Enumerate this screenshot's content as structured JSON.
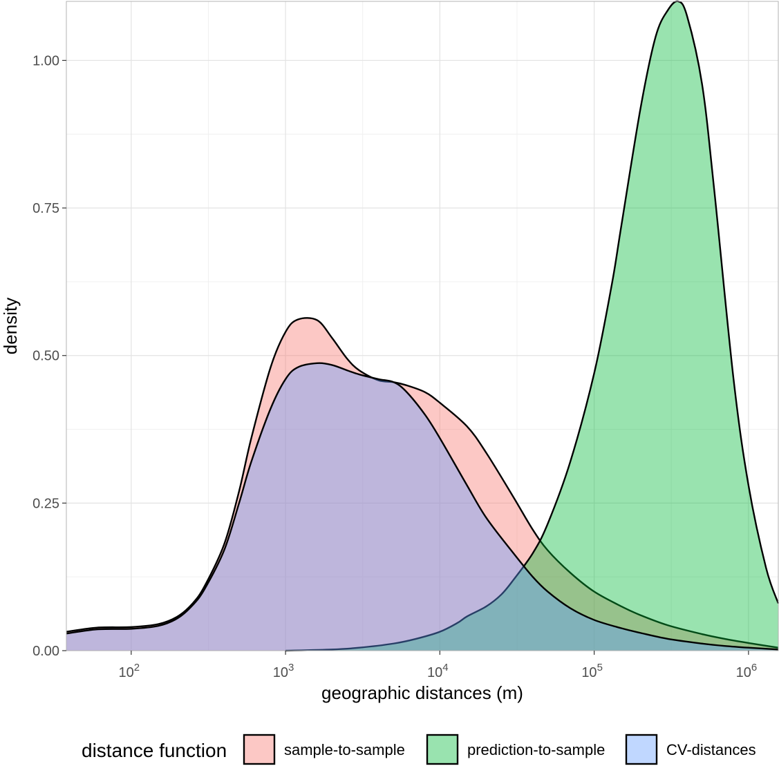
{
  "chart_data": {
    "type": "area",
    "xlabel": "geographic distances (m)",
    "ylabel": "density",
    "x_scale": "log10",
    "xlim": [
      38,
      1560000
    ],
    "ylim": [
      0,
      1.1
    ],
    "x_ticks": [
      {
        "value": 100,
        "base": "10",
        "exp": "2"
      },
      {
        "value": 1000,
        "base": "10",
        "exp": "3"
      },
      {
        "value": 10000,
        "base": "10",
        "exp": "4"
      },
      {
        "value": 100000,
        "base": "10",
        "exp": "5"
      },
      {
        "value": 1000000,
        "base": "10",
        "exp": "6"
      }
    ],
    "y_ticks": [
      {
        "value": 0,
        "label": "0.00"
      },
      {
        "value": 0.25,
        "label": "0.25"
      },
      {
        "value": 0.5,
        "label": "0.50"
      },
      {
        "value": 0.75,
        "label": "0.75"
      },
      {
        "value": 1.0,
        "label": "1.00"
      }
    ],
    "grid": true,
    "legend_position": "bottom",
    "legend_title": "distance function",
    "series": [
      {
        "name": "sample-to-sample",
        "color": "#F8766D",
        "x": [
          38,
          60,
          100,
          150,
          200,
          250,
          300,
          400,
          500,
          600,
          800,
          1000,
          1200,
          1600,
          2000,
          2500,
          3000,
          4000,
          5000,
          6000,
          8000,
          10000,
          15000,
          20000,
          30000,
          40000,
          50000,
          70000,
          100000,
          150000,
          200000,
          300000,
          500000,
          700000,
          1000000,
          1560000
        ],
        "y": [
          0.032,
          0.039,
          0.04,
          0.045,
          0.058,
          0.08,
          0.11,
          0.18,
          0.27,
          0.36,
          0.48,
          0.54,
          0.561,
          0.56,
          0.53,
          0.495,
          0.475,
          0.458,
          0.455,
          0.45,
          0.438,
          0.42,
          0.38,
          0.335,
          0.26,
          0.205,
          0.17,
          0.132,
          0.1,
          0.075,
          0.06,
          0.043,
          0.028,
          0.02,
          0.013,
          0.005
        ]
      },
      {
        "name": "prediction-to-sample",
        "color": "#00BA38",
        "x": [
          1000,
          2000,
          3000,
          5000,
          7000,
          10000,
          13000,
          15000,
          20000,
          25000,
          30000,
          40000,
          50000,
          70000,
          100000,
          130000,
          150000,
          200000,
          250000,
          300000,
          350000,
          400000,
          500000,
          600000,
          800000,
          1000000,
          1300000,
          1560000
        ],
        "y": [
          0.0,
          0.002,
          0.005,
          0.012,
          0.02,
          0.032,
          0.047,
          0.058,
          0.075,
          0.095,
          0.12,
          0.165,
          0.215,
          0.32,
          0.47,
          0.62,
          0.72,
          0.92,
          1.04,
          1.085,
          1.1,
          1.075,
          0.96,
          0.78,
          0.46,
          0.28,
          0.14,
          0.08
        ]
      },
      {
        "name": "CV-distances",
        "color": "#619CFF",
        "x": [
          38,
          60,
          100,
          150,
          200,
          250,
          300,
          400,
          500,
          600,
          800,
          1000,
          1200,
          1600,
          2000,
          2500,
          3000,
          4000,
          5000,
          6000,
          8000,
          10000,
          15000,
          20000,
          30000,
          40000,
          50000,
          70000,
          100000,
          150000,
          200000,
          300000,
          500000,
          700000,
          1000000,
          1560000
        ],
        "y": [
          0.029,
          0.036,
          0.037,
          0.042,
          0.055,
          0.077,
          0.105,
          0.17,
          0.25,
          0.32,
          0.41,
          0.46,
          0.48,
          0.487,
          0.484,
          0.475,
          0.468,
          0.46,
          0.455,
          0.44,
          0.4,
          0.36,
          0.28,
          0.225,
          0.165,
          0.125,
          0.1,
          0.072,
          0.052,
          0.038,
          0.03,
          0.02,
          0.012,
          0.008,
          0.005,
          0.002
        ]
      }
    ]
  }
}
